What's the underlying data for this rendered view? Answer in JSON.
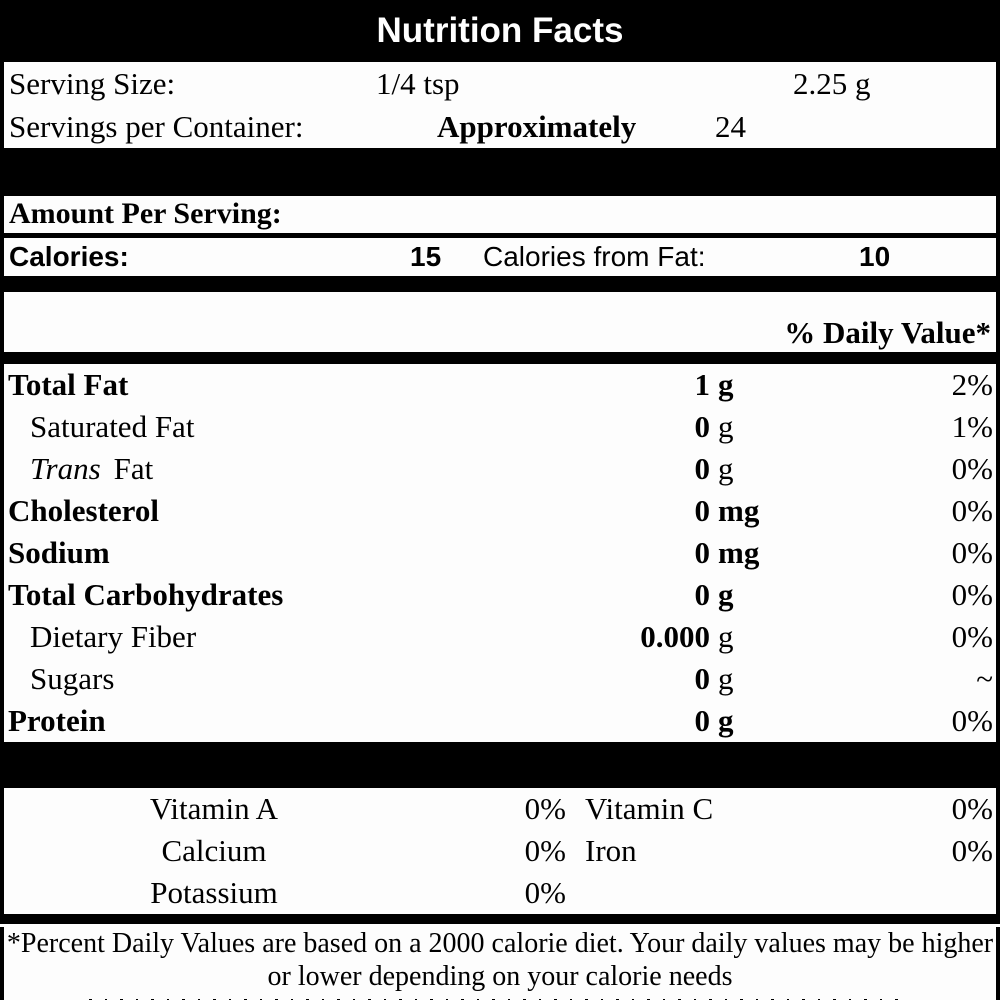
{
  "title": "Nutrition Facts",
  "serving": {
    "size_label": "Serving Size:",
    "size_value": "1/4 tsp",
    "size_weight": "2.25 g",
    "per_container_label": "Servings per Container:",
    "per_container_qualifier": "Approximately",
    "per_container_value": "24"
  },
  "amount_per_serving": {
    "heading": "Amount Per Serving:",
    "calories_label": "Calories:",
    "calories_value": "15",
    "calories_from_fat_label": "Calories from Fat:",
    "calories_from_fat_value": "10"
  },
  "daily_value_header": "% Daily Value*",
  "nutrients": [
    {
      "label": "Total Fat",
      "amount": "1",
      "unit": "g",
      "dv": "2%"
    },
    {
      "label": "Saturated Fat",
      "amount": "0",
      "unit": "g",
      "dv": "1%"
    },
    {
      "label_italic": "Trans",
      "label": "Fat",
      "amount": "0",
      "unit": "g",
      "dv": "0%"
    },
    {
      "label": "Cholesterol",
      "amount": "0",
      "unit": "mg",
      "dv": "0%"
    },
    {
      "label": "Sodium",
      "amount": "0",
      "unit": "mg",
      "dv": "0%"
    },
    {
      "label": "Total Carbohydrates",
      "amount": "0",
      "unit": "g",
      "dv": "0%"
    },
    {
      "label": "Dietary Fiber",
      "amount": "0.000",
      "unit": "g",
      "dv": "0%"
    },
    {
      "label": "Sugars",
      "amount": "0",
      "unit": "g",
      "dv": "~"
    },
    {
      "label": "Protein",
      "amount": "0",
      "unit": "g",
      "dv": "0%"
    }
  ],
  "micronutrients": [
    {
      "label1": "Vitamin A",
      "value1": "0%",
      "label2": "Vitamin C",
      "value2": "0%"
    },
    {
      "label1": "Calcium",
      "value1": "0%",
      "label2": "Iron",
      "value2": "0%"
    },
    {
      "label1": "Potassium",
      "value1": "0%",
      "label2": "",
      "value2": ""
    }
  ],
  "footnote": {
    "line1": "*Percent Daily Values are based on a 2000 calorie diet. Your daily values may be higher",
    "line2": "or lower depending on your calorie needs"
  },
  "colors": {
    "band": "#000000",
    "background": "#fdfdfd",
    "text": "#000000"
  }
}
